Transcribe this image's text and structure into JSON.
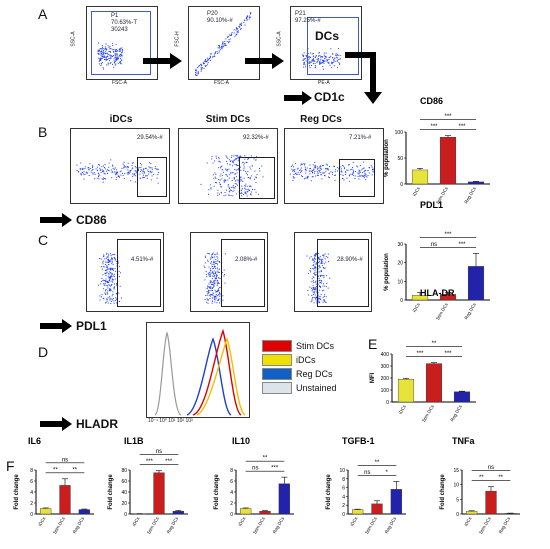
{
  "panels": {
    "a": "A",
    "b": "B",
    "c": "C",
    "d": "D",
    "e": "E",
    "f": "F"
  },
  "panel_a": {
    "plots": [
      {
        "gate_name": "P1",
        "gate_pct": "70.63%-T",
        "gate_count": "30243",
        "ylabel": "SSC-A",
        "xlabel": "FSC-A"
      },
      {
        "gate_name": "P20",
        "gate_pct": "90.10%-#",
        "ylabel": "FSC-H",
        "xlabel": "FSC-A"
      },
      {
        "gate_name": "P21",
        "gate_pct": "97.25%-#",
        "ylabel": "SSC-A",
        "xlabel": "PE-A",
        "gate_text": "DCs"
      }
    ],
    "arrow_label": "CD1c"
  },
  "panel_b": {
    "titles": [
      "iDCs",
      "Stim DCs",
      "Reg DCs"
    ],
    "gates": [
      "29.54%-#",
      "92.32%-#",
      "7.21%-#"
    ],
    "arrow_label": "CD86"
  },
  "panel_c": {
    "gates": [
      "4.51%-#",
      "2.08%-#",
      "28.90%-#"
    ],
    "arrow_label": "PDL1"
  },
  "panel_d": {
    "arrow_label": "HLADR",
    "legend": [
      {
        "label": "Stim DCs",
        "color": "#e00000"
      },
      {
        "label": "iDCs",
        "color": "#f0e000"
      },
      {
        "label": "Reg DCs",
        "color": "#1060c8"
      },
      {
        "label": "Unstained",
        "color": "#dde3ea"
      }
    ]
  },
  "colors": {
    "idcs": "#e8e33a",
    "stim": "#c81e1e",
    "reg": "#2222aa",
    "dots": "#1e3cff"
  },
  "chart_data": [
    {
      "type": "bar",
      "title": "CD86",
      "ylabel": "% population",
      "categories": [
        "iDCs",
        "Stim DCs",
        "Reg DCs"
      ],
      "values": [
        27,
        90,
        4
      ],
      "errors": [
        3,
        3,
        1
      ],
      "ylim": [
        0,
        100
      ],
      "yticks": [
        0,
        50,
        100
      ],
      "sig": [
        {
          "pair": [
            0,
            1
          ],
          "label": "***"
        },
        {
          "pair": [
            1,
            2
          ],
          "label": "***"
        },
        {
          "pair": [
            0,
            2
          ],
          "label": "***"
        }
      ]
    },
    {
      "type": "bar",
      "title": "PDL1",
      "ylabel": "% population",
      "categories": [
        "iDCs",
        "Stim DCs",
        "Reg DCs"
      ],
      "values": [
        2.5,
        3,
        18
      ],
      "errors": [
        1.5,
        1,
        7
      ],
      "ylim": [
        0,
        30
      ],
      "yticks": [
        0,
        10,
        20,
        30
      ],
      "sig": [
        {
          "pair": [
            0,
            1
          ],
          "label": "ns"
        },
        {
          "pair": [
            1,
            2
          ],
          "label": "***"
        },
        {
          "pair": [
            0,
            2
          ],
          "label": "***"
        }
      ]
    },
    {
      "type": "bar",
      "title": "HLA-DR",
      "ylabel": "MFI",
      "categories": [
        "iDCs",
        "Stim DCs",
        "Reg DCs"
      ],
      "values": [
        190,
        320,
        85
      ],
      "errors": [
        8,
        8,
        5
      ],
      "ylim": [
        0,
        400
      ],
      "yticks": [
        0,
        100,
        200,
        300,
        400
      ],
      "sig": [
        {
          "pair": [
            0,
            1
          ],
          "label": "***"
        },
        {
          "pair": [
            1,
            2
          ],
          "label": "***"
        },
        {
          "pair": [
            0,
            2
          ],
          "label": "**"
        }
      ]
    },
    {
      "type": "bar",
      "title": "IL6",
      "ylabel": "Fold change",
      "categories": [
        "iDCs",
        "Stim DCs",
        "Reg DCs"
      ],
      "values": [
        1,
        5.2,
        0.8
      ],
      "errors": [
        0.1,
        1.2,
        0.1
      ],
      "ylim": [
        0,
        8
      ],
      "yticks": [
        0,
        2,
        4,
        6,
        8
      ],
      "sig": [
        {
          "pair": [
            0,
            1
          ],
          "label": "**"
        },
        {
          "pair": [
            1,
            2
          ],
          "label": "**"
        },
        {
          "pair": [
            0,
            2
          ],
          "label": "ns"
        }
      ]
    },
    {
      "type": "bar",
      "title": "IL1B",
      "ylabel": "Fold change",
      "categories": [
        "iDCs",
        "Stim DCs",
        "Reg DCs"
      ],
      "values": [
        0.5,
        75,
        5
      ],
      "errors": [
        0.2,
        4,
        1.5
      ],
      "ylim": [
        0,
        80
      ],
      "yticks": [
        0,
        20,
        40,
        60,
        80
      ],
      "sig": [
        {
          "pair": [
            0,
            1
          ],
          "label": "***"
        },
        {
          "pair": [
            1,
            2
          ],
          "label": "***"
        },
        {
          "pair": [
            0,
            2
          ],
          "label": "ns"
        }
      ]
    },
    {
      "type": "bar",
      "title": "IL10",
      "ylabel": "Fold change",
      "categories": [
        "iDCs",
        "Stim DCs",
        "Reg DCs"
      ],
      "values": [
        1,
        0.5,
        5.5
      ],
      "errors": [
        0.1,
        0.1,
        1.2
      ],
      "ylim": [
        0,
        8
      ],
      "yticks": [
        0,
        2,
        4,
        6,
        8
      ],
      "sig": [
        {
          "pair": [
            0,
            1
          ],
          "label": "ns"
        },
        {
          "pair": [
            1,
            2
          ],
          "label": "***"
        },
        {
          "pair": [
            0,
            2
          ],
          "label": "**"
        }
      ]
    },
    {
      "type": "bar",
      "title": "TGFB-1",
      "ylabel": "Fold change",
      "categories": [
        "iDCs",
        "Stim DCs",
        "Reg DCs"
      ],
      "values": [
        1,
        2.3,
        5.6
      ],
      "errors": [
        0.1,
        0.7,
        1.8
      ],
      "ylim": [
        0,
        10
      ],
      "yticks": [
        0,
        2,
        4,
        6,
        8,
        10
      ],
      "sig": [
        {
          "pair": [
            0,
            1
          ],
          "label": "ns"
        },
        {
          "pair": [
            1,
            2
          ],
          "label": "*"
        },
        {
          "pair": [
            0,
            2
          ],
          "label": "**"
        }
      ]
    },
    {
      "type": "bar",
      "title": "TNFa",
      "ylabel": "Fold change",
      "categories": [
        "iDCs",
        "Stim DCs",
        "Reg DCs"
      ],
      "values": [
        0.9,
        7.8,
        0.2
      ],
      "errors": [
        0.2,
        1.5,
        0.1
      ],
      "ylim": [
        0,
        15
      ],
      "yticks": [
        0,
        5,
        10,
        15
      ],
      "sig": [
        {
          "pair": [
            0,
            1
          ],
          "label": "**"
        },
        {
          "pair": [
            1,
            2
          ],
          "label": "**"
        },
        {
          "pair": [
            0,
            2
          ],
          "label": "ns"
        }
      ]
    }
  ]
}
